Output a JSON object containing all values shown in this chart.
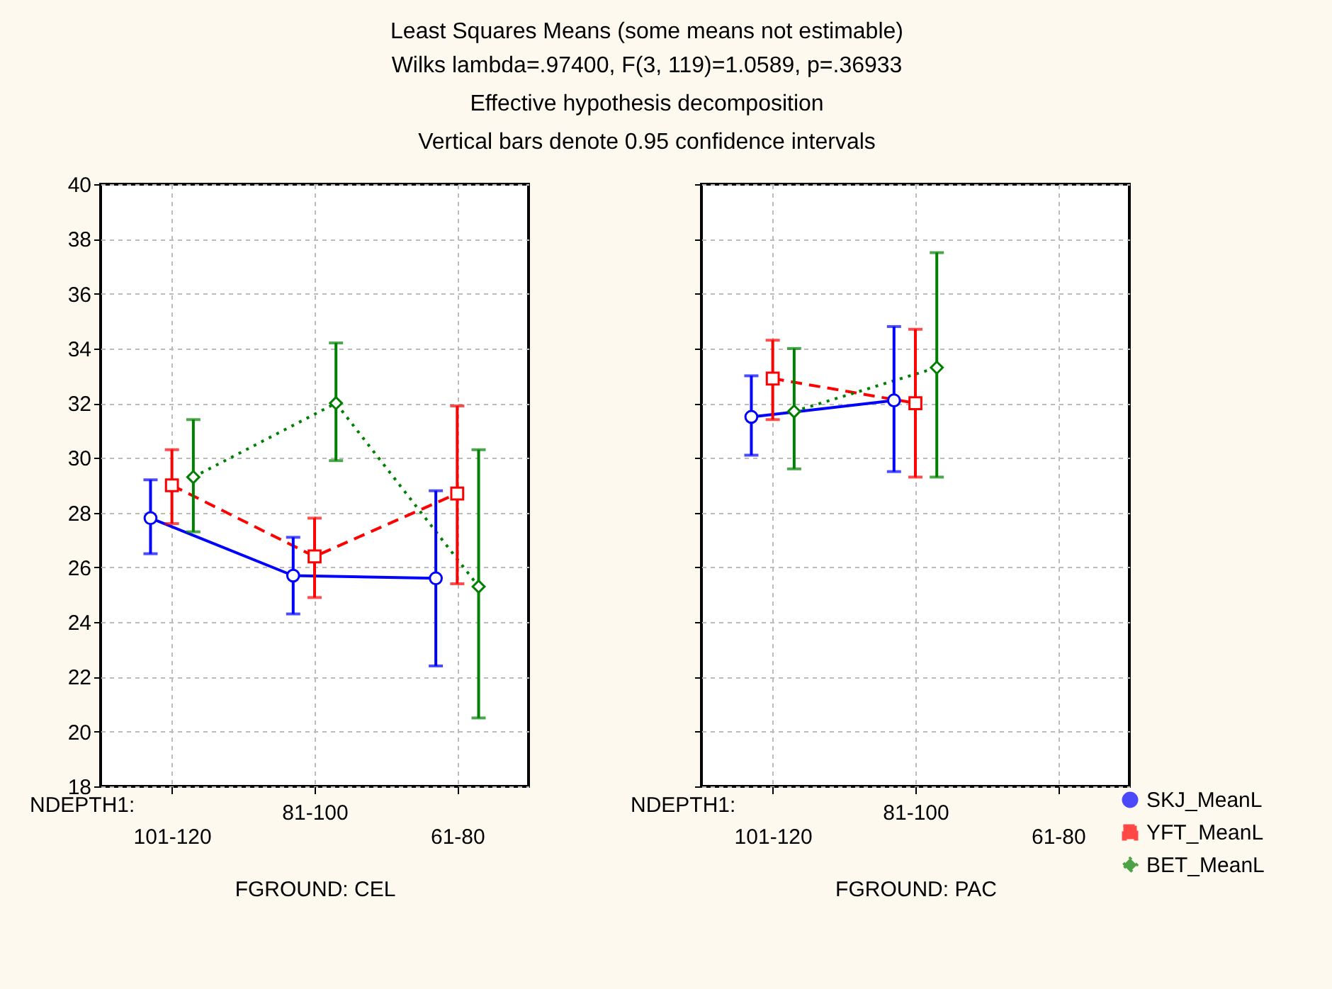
{
  "chart_data": [
    {
      "type": "line",
      "title": "Least Squares Means (some means not estimable)",
      "subtitle": "Wilks lambda=.97400, F(3, 119)=1.0589, p=.36933\nEffective hypothesis decomposition\nVertical bars denote 0.95 confidence intervals",
      "xlabel": "FGROUND: CEL",
      "annotations": [
        "NDEPTH1:"
      ],
      "categories": [
        "101-120",
        "81-100",
        "61-80"
      ],
      "ylim": [
        18,
        40
      ],
      "yticks": [
        18,
        20,
        22,
        24,
        26,
        28,
        30,
        32,
        34,
        36,
        38,
        40
      ],
      "grid": true,
      "legend": "bottom right",
      "series": [
        {
          "name": "SKJ_MeanL",
          "color": "#0000ff",
          "marker": "circle",
          "line_style": "solid",
          "values": [
            27.8,
            25.7,
            25.6
          ],
          "errors": [
            [
              26.5,
              29.2
            ],
            [
              24.3,
              27.1
            ],
            [
              22.4,
              28.8
            ]
          ]
        },
        {
          "name": "YFT_MeanL",
          "color": "#ff0000",
          "marker": "square",
          "line_style": "dashed",
          "values": [
            29.0,
            26.4,
            28.7
          ],
          "errors": [
            [
              27.6,
              30.3
            ],
            [
              24.9,
              27.8
            ],
            [
              25.4,
              31.9
            ]
          ]
        },
        {
          "name": "BET_MeanL",
          "color": "#008000",
          "marker": "diamond",
          "line_style": "dotted",
          "values": [
            29.3,
            32.0,
            25.3
          ],
          "errors": [
            [
              27.3,
              31.4
            ],
            [
              29.9,
              34.2
            ],
            [
              20.5,
              30.3
            ]
          ]
        }
      ]
    },
    {
      "type": "line",
      "xlabel": "FGROUND: PAC",
      "annotations": [
        "NDEPTH1:"
      ],
      "categories": [
        "101-120",
        "81-100",
        "61-80"
      ],
      "ylim": [
        18,
        40
      ],
      "yticks": [
        18,
        20,
        22,
        24,
        26,
        28,
        30,
        32,
        34,
        36,
        38,
        40
      ],
      "tick_labels": "x",
      "grid": true,
      "legend": "bottom right",
      "series": [
        {
          "name": "SKJ_MeanL",
          "color": "#0000ff",
          "marker": "circle",
          "line_style": "solid",
          "values": [
            31.5,
            32.1,
            null
          ],
          "errors": [
            [
              30.1,
              33.0
            ],
            [
              29.5,
              34.8
            ],
            null
          ]
        },
        {
          "name": "YFT_MeanL",
          "color": "#ff0000",
          "marker": "square",
          "line_style": "dashed",
          "values": [
            32.9,
            32.0,
            null
          ],
          "errors": [
            [
              31.4,
              34.3
            ],
            [
              29.3,
              34.7
            ],
            null
          ]
        },
        {
          "name": "BET_MeanL",
          "color": "#008000",
          "marker": "diamond",
          "line_style": "dotted",
          "values": [
            31.7,
            33.3,
            null
          ],
          "errors": [
            [
              29.6,
              34.0
            ],
            [
              29.3,
              37.5
            ],
            null
          ]
        }
      ]
    }
  ]
}
